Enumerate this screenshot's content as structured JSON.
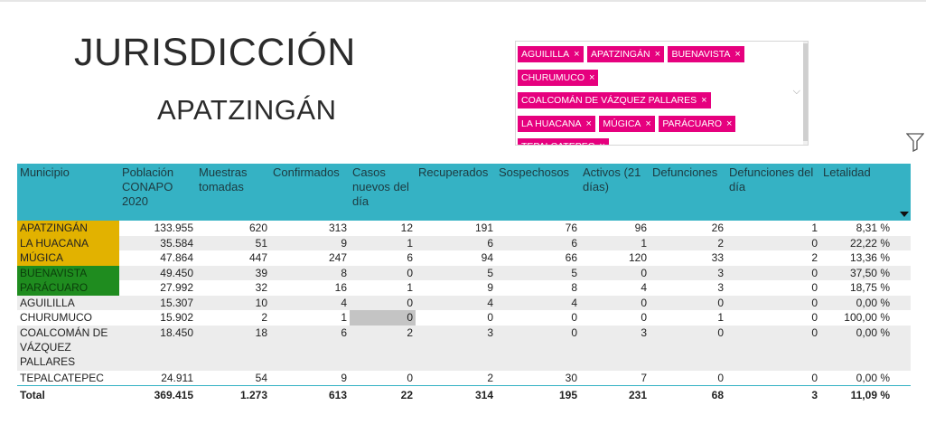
{
  "header": {
    "title": "JURISDICCIÓN",
    "subtitle": "APATZINGÁN"
  },
  "slicer": {
    "selected": [
      "AGUILILLA",
      "APATZINGÁN",
      "BUENAVISTA",
      "CHURUMUCO",
      "COALCOMÁN DE VÁZQUEZ PALLARES",
      "LA HUACANA",
      "MÚGICA",
      "PARÁCUARO",
      "TEPALCATEPEC"
    ],
    "remove_glyph": "×",
    "dropdown_glyph": "⌵",
    "tag_color": "#e6007e"
  },
  "table": {
    "headers": [
      "Municipio",
      "Población CONAPO 2020",
      "Muestras tomadas",
      "Confirmados",
      "Casos nuevos del día",
      "Recuperados",
      "Sospechosos",
      "Activos (21 días)",
      "Defunciones",
      "Defunciones del día",
      "Letalidad"
    ],
    "header_color": "#35b2c4",
    "rows": [
      [
        "APATZINGÁN",
        "133.955",
        "620",
        "313",
        "12",
        "191",
        "76",
        "96",
        "26",
        "1",
        "8,31 %"
      ],
      [
        "LA HUACANA",
        "35.584",
        "51",
        "9",
        "1",
        "6",
        "6",
        "1",
        "2",
        "0",
        "22,22 %"
      ],
      [
        "MÚGICA",
        "47.864",
        "447",
        "247",
        "6",
        "94",
        "66",
        "120",
        "33",
        "2",
        "13,36 %"
      ],
      [
        "BUENAVISTA",
        "49.450",
        "39",
        "8",
        "0",
        "5",
        "5",
        "0",
        "3",
        "0",
        "37,50 %"
      ],
      [
        "PARÁCUARO",
        "27.992",
        "32",
        "16",
        "1",
        "9",
        "8",
        "4",
        "3",
        "0",
        "18,75 %"
      ],
      [
        "AGUILILLA",
        "15.307",
        "10",
        "4",
        "0",
        "4",
        "4",
        "0",
        "0",
        "0",
        "0,00 %"
      ],
      [
        "CHURUMUCO",
        "15.902",
        "2",
        "1",
        "0",
        "0",
        "0",
        "0",
        "1",
        "0",
        "100,00 %"
      ],
      [
        "COALCOMÁN DE VÁZQUEZ PALLARES",
        "18.450",
        "18",
        "6",
        "2",
        "3",
        "0",
        "3",
        "0",
        "0",
        "0,00 %"
      ],
      [
        "TEPALCATEPEC",
        "24.911",
        "54",
        "9",
        "0",
        "2",
        "30",
        "7",
        "0",
        "0",
        "0,00 %"
      ]
    ],
    "total": [
      "Total",
      "369.415",
      "1.273",
      "613",
      "22",
      "314",
      "195",
      "231",
      "68",
      "3",
      "11,09 %"
    ]
  }
}
